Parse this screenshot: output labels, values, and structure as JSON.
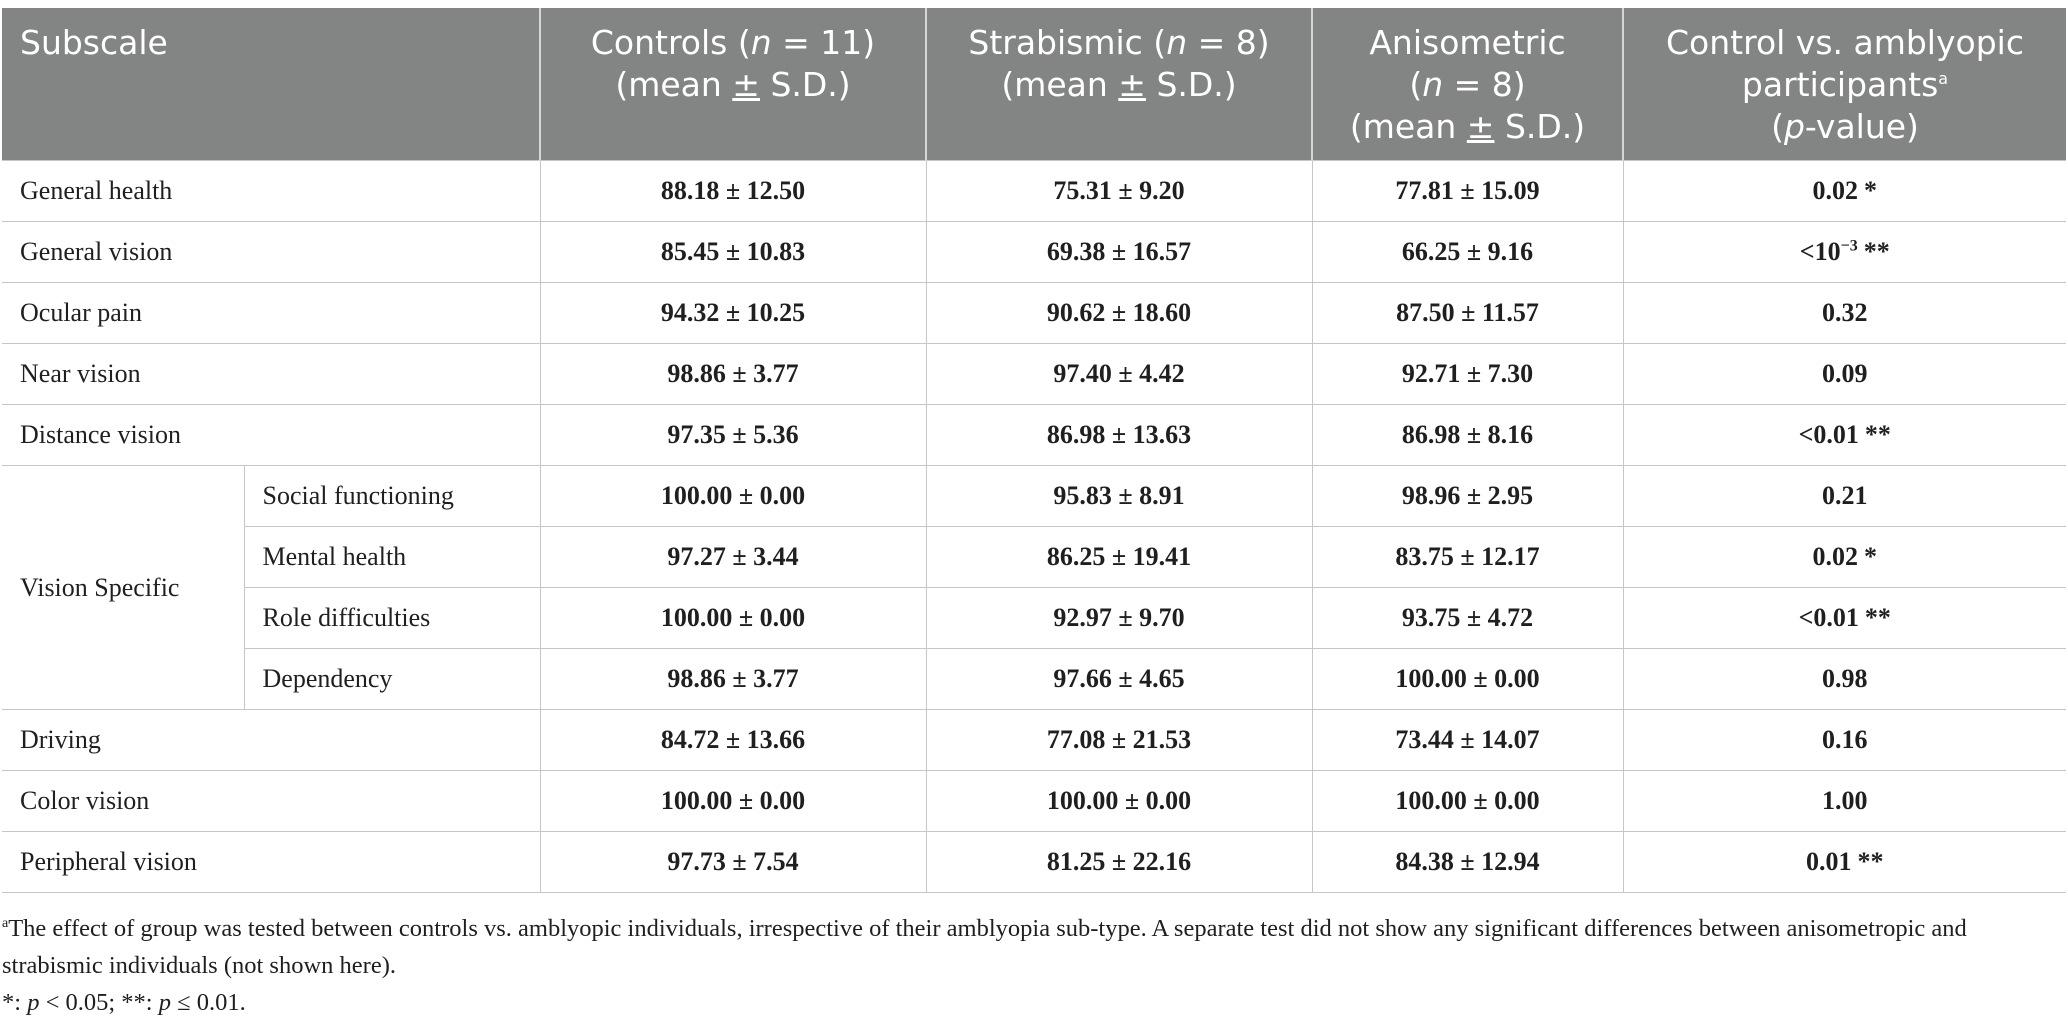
{
  "table": {
    "headers": {
      "subscale": "Subscale",
      "controls_line1_pre": "Controls (",
      "controls_n_italic": "n",
      "controls_line1_post": " = 11)",
      "strab_line1_pre": "Strabismic (",
      "strab_n_italic": "n",
      "strab_line1_post": " = 8)",
      "aniso_line1": "Anisometric",
      "aniso_line2_pre": "(",
      "aniso_n_italic": "n",
      "aniso_line2_post": " = 8)",
      "mean_pre": "(mean ",
      "mean_pm": "±",
      "mean_post": " S.D.)",
      "pval_line1": "Control vs. amblyopic",
      "pval_line2": "participants",
      "pval_sup": "a",
      "pval_line3_pre": "(",
      "pval_p_italic": "p",
      "pval_line3_post": "-value)"
    },
    "vision_specific_label": "Vision Specific",
    "rows": [
      {
        "label": "General health",
        "controls": "88.18 ± 12.50",
        "strabismic": "75.31 ± 9.20",
        "anisometric": "77.81 ± 15.09",
        "p_base": "0.02",
        "p_sup": "",
        "sig": "*"
      },
      {
        "label": "General vision",
        "controls": "85.45 ± 10.83",
        "strabismic": "69.38 ± 16.57",
        "anisometric": "66.25 ± 9.16",
        "p_base": "<10",
        "p_sup": "−3",
        "sig": "**"
      },
      {
        "label": "Ocular pain",
        "controls": "94.32 ± 10.25",
        "strabismic": "90.62 ± 18.60",
        "anisometric": "87.50 ± 11.57",
        "p_base": "0.32",
        "p_sup": "",
        "sig": ""
      },
      {
        "label": "Near vision",
        "controls": "98.86 ± 3.77",
        "strabismic": "97.40 ± 4.42",
        "anisometric": "92.71 ± 7.30",
        "p_base": "0.09",
        "p_sup": "",
        "sig": ""
      },
      {
        "label": "Distance vision",
        "controls": "97.35 ± 5.36",
        "strabismic": "86.98 ± 13.63",
        "anisometric": "86.98 ± 8.16",
        "p_base": "<0.01",
        "p_sup": "",
        "sig": "**"
      },
      {
        "label": "Social functioning",
        "controls": "100.00 ± 0.00",
        "strabismic": "95.83 ± 8.91",
        "anisometric": "98.96 ± 2.95",
        "p_base": "0.21",
        "p_sup": "",
        "sig": ""
      },
      {
        "label": "Mental health",
        "controls": "97.27 ± 3.44",
        "strabismic": "86.25 ± 19.41",
        "anisometric": "83.75 ± 12.17",
        "p_base": "0.02",
        "p_sup": "",
        "sig": "*"
      },
      {
        "label": "Role difficulties",
        "controls": "100.00 ± 0.00",
        "strabismic": "92.97 ± 9.70",
        "anisometric": "93.75 ± 4.72",
        "p_base": "<0.01",
        "p_sup": "",
        "sig": "**"
      },
      {
        "label": "Dependency",
        "controls": "98.86 ± 3.77",
        "strabismic": "97.66 ± 4.65",
        "anisometric": "100.00 ± 0.00",
        "p_base": "0.98",
        "p_sup": "",
        "sig": ""
      },
      {
        "label": "Driving",
        "controls": "84.72 ± 13.66",
        "strabismic": "77.08 ± 21.53",
        "anisometric": "73.44 ± 14.07",
        "p_base": "0.16",
        "p_sup": "",
        "sig": ""
      },
      {
        "label": "Color vision",
        "controls": "100.00 ± 0.00",
        "strabismic": "100.00 ± 0.00",
        "anisometric": "100.00 ± 0.00",
        "p_base": "1.00",
        "p_sup": "",
        "sig": ""
      },
      {
        "label": "Peripheral vision",
        "controls": "97.73 ± 7.54",
        "strabismic": "81.25 ± 22.16",
        "anisometric": "84.38 ± 12.94",
        "p_base": "0.01",
        "p_sup": "",
        "sig": "**"
      }
    ]
  },
  "footnotes": {
    "a_marker": "a",
    "a_text": "The effect of group was tested between controls vs. amblyopic individuals, irrespective of their amblyopia sub-type. A separate test did not show any significant differences between anisometropic and strabismic individuals (not shown here).",
    "sig_one_pre": "*: ",
    "sig_one_p": "p",
    "sig_one_post": " < 0.05; **: ",
    "sig_two_p": "p",
    "sig_two_post": " ≤ 0.01."
  }
}
